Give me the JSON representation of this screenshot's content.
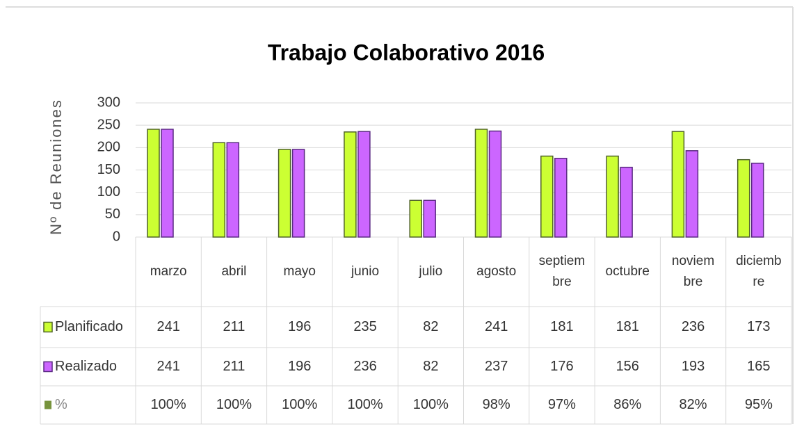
{
  "chart_data": {
    "type": "bar",
    "title": "Trabajo Colaborativo 2016",
    "y_label": "Nº de Reuniones",
    "categories": [
      "marzo",
      "abril",
      "mayo",
      "junio",
      "julio",
      "agosto",
      "septiembre",
      "octubre",
      "noviembre",
      "diciembre"
    ],
    "series": [
      {
        "name": "Planificado",
        "color": "#ccff33",
        "values": [
          241,
          211,
          196,
          235,
          82,
          241,
          181,
          181,
          236,
          173
        ]
      },
      {
        "name": "Realizado",
        "color": "#cc66ff",
        "values": [
          241,
          211,
          196,
          236,
          82,
          237,
          176,
          156,
          193,
          165
        ]
      }
    ],
    "percent": {
      "name": "%",
      "color": "#77933c",
      "values": [
        100,
        100,
        100,
        100,
        100,
        98,
        97,
        86,
        82,
        95
      ],
      "value_labels": [
        "100%",
        "100%",
        "100%",
        "100%",
        "100%",
        "98%",
        "97%",
        "86%",
        "82%",
        "95%"
      ]
    },
    "ylim": [
      0,
      300
    ],
    "yticks": [
      0,
      50,
      100,
      150,
      200,
      250,
      300
    ],
    "grid": true
  }
}
